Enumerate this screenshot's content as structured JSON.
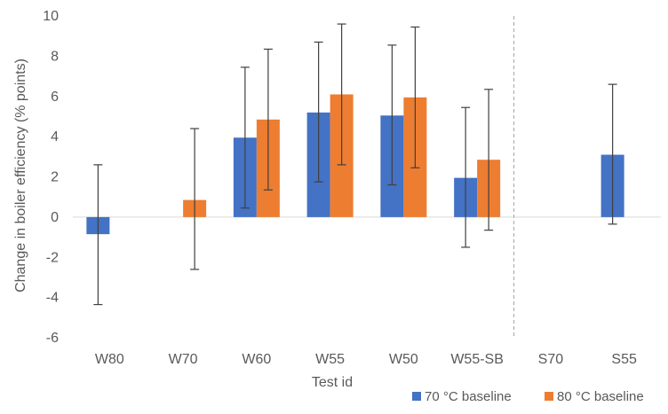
{
  "chart_data": {
    "type": "bar",
    "xlabel": "Test id",
    "ylabel": "Change in boiler efficiency (% points)",
    "ylim": [
      -6,
      10
    ],
    "yticks": [
      -6,
      -4,
      -2,
      0,
      2,
      4,
      6,
      8,
      10
    ],
    "grid": false,
    "legend_position": "bottom-right",
    "categories": [
      "W80",
      "W70",
      "W60",
      "W55",
      "W50",
      "W55-SB",
      "S70",
      "S55"
    ],
    "separator_after_category": "W55-SB",
    "series": [
      {
        "name": "70 °C baseline",
        "color": "#4472C4",
        "values": [
          -0.85,
          null,
          3.95,
          5.2,
          5.05,
          1.95,
          null,
          3.1
        ],
        "error_low": [
          -4.35,
          null,
          0.45,
          1.75,
          1.6,
          -1.5,
          null,
          -0.35
        ],
        "error_high": [
          2.6,
          null,
          7.45,
          8.7,
          8.55,
          5.45,
          null,
          6.6
        ]
      },
      {
        "name": "80 °C baseline",
        "color": "#ED7D31",
        "values": [
          null,
          0.85,
          4.85,
          6.1,
          5.95,
          2.85,
          null,
          null
        ],
        "error_low": [
          null,
          -2.6,
          1.35,
          2.6,
          2.45,
          -0.65,
          null,
          null
        ],
        "error_high": [
          null,
          4.4,
          8.35,
          9.6,
          9.45,
          6.35,
          null,
          null
        ]
      }
    ]
  },
  "axis_color": "#d9d9d9",
  "error_bar_color": "#404040",
  "separator_color": "#a6a6a6"
}
